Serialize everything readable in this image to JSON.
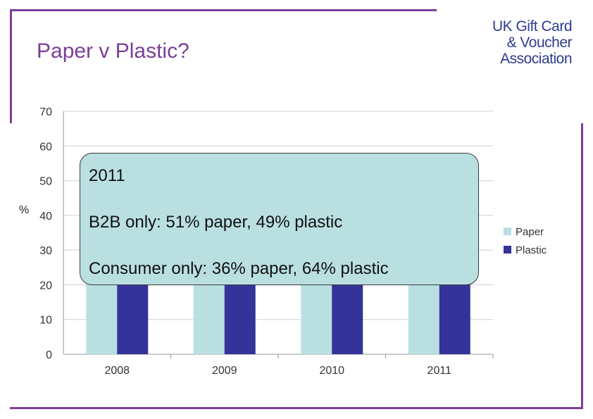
{
  "title": "Paper v Plastic?",
  "logo": {
    "line1": "UK Gift Card",
    "line2": "& Voucher",
    "line3": "Association"
  },
  "callout": {
    "year": "2011",
    "b2b": "B2B only: 51% paper, 49% plastic",
    "consumer": "Consumer only: 36% paper, 64% plastic"
  },
  "colors": {
    "accent": "#7b3f98",
    "paper": "#b9dfe1",
    "plastic": "#333399",
    "logo": "#2f3b8f"
  },
  "chart_data": {
    "type": "bar",
    "categories": [
      "2008",
      "2009",
      "2010",
      "2011"
    ],
    "series": [
      {
        "name": "Paper",
        "values": [
          45,
          45,
          45,
          45
        ]
      },
      {
        "name": "Plastic",
        "values": [
          45,
          45,
          45,
          45
        ]
      }
    ],
    "ylabel": "%",
    "ylim": [
      0,
      70
    ],
    "yticks": [
      0,
      10,
      20,
      30,
      40,
      50,
      60,
      70
    ],
    "grid": true,
    "legend": "right"
  }
}
